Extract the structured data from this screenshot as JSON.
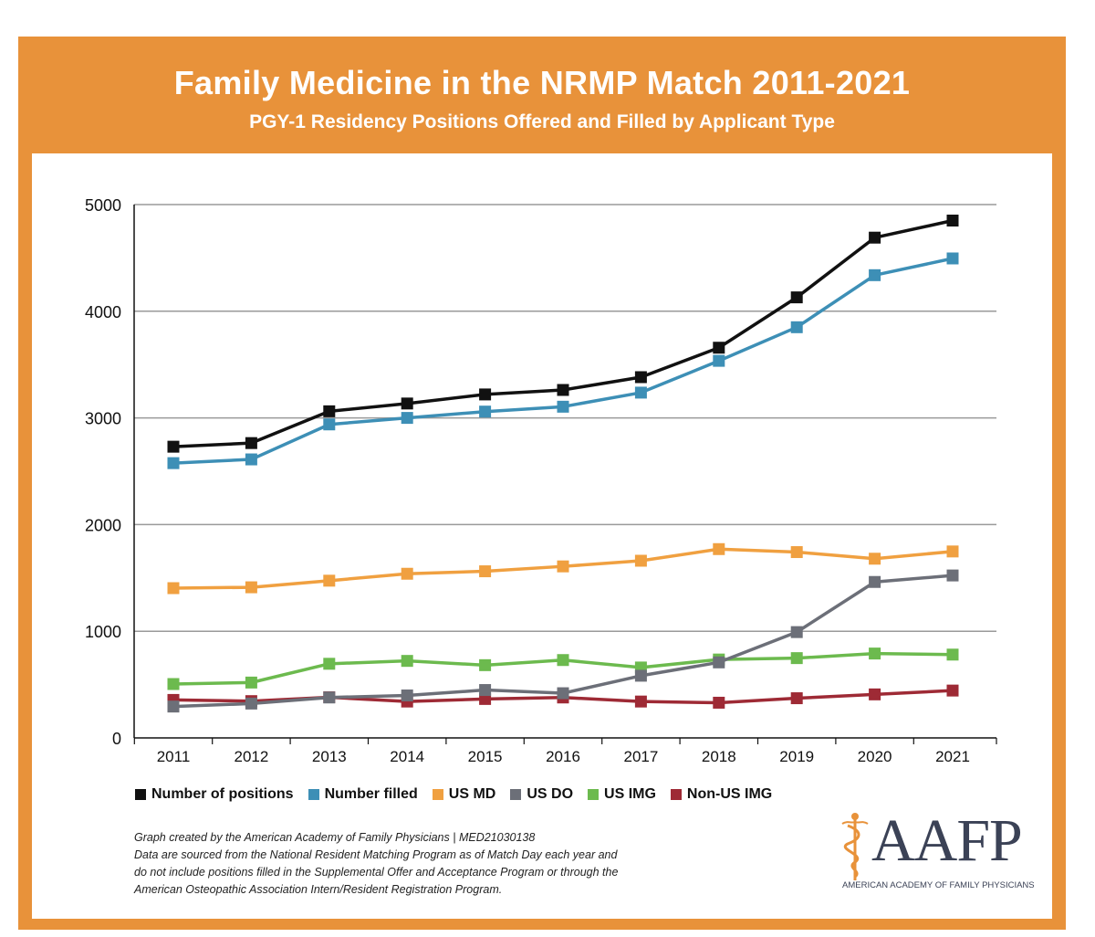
{
  "header": {
    "title": "Family Medicine in the NRMP Match 2011-2021",
    "subtitle": "PGY-1 Residency Positions Offered and Filled by Applicant Type"
  },
  "chart_data": {
    "type": "line",
    "title": "Family Medicine in the NRMP Match 2011-2021",
    "subtitle": "PGY-1 Residency Positions Offered and Filled by Applicant Type",
    "xlabel": "",
    "ylabel": "",
    "x": [
      "2011",
      "2012",
      "2013",
      "2014",
      "2015",
      "2016",
      "2017",
      "2018",
      "2019",
      "2020",
      "2021"
    ],
    "ylim": [
      0,
      5000
    ],
    "yticks": [
      "0",
      "1000",
      "2000",
      "3000",
      "4000",
      "5000"
    ],
    "grid": true,
    "legend_position": "bottom",
    "series": [
      {
        "name": "Number of positions",
        "color": "#111111",
        "values": [
          2730,
          2764,
          3062,
          3135,
          3220,
          3262,
          3382,
          3658,
          4130,
          4690,
          4850
        ]
      },
      {
        "name": "Number filled",
        "color": "#3d8fb6",
        "values": [
          2576,
          2611,
          2939,
          3000,
          3059,
          3105,
          3237,
          3535,
          3850,
          4338,
          4495
        ]
      },
      {
        "name": "US MD",
        "color": "#f0a040",
        "values": [
          1404,
          1412,
          1474,
          1539,
          1562,
          1608,
          1661,
          1770,
          1742,
          1680,
          1748
        ]
      },
      {
        "name": "US DO",
        "color": "#6c6f78",
        "values": [
          294,
          322,
          379,
          398,
          449,
          419,
          583,
          708,
          992,
          1462,
          1523
        ]
      },
      {
        "name": "US IMG",
        "color": "#6cba4e",
        "values": [
          505,
          519,
          695,
          722,
          682,
          730,
          660,
          735,
          748,
          791,
          781
        ]
      },
      {
        "name": "Non-US IMG",
        "color": "#9e2a35",
        "values": [
          356,
          345,
          381,
          341,
          365,
          379,
          341,
          330,
          372,
          408,
          444
        ]
      }
    ]
  },
  "notes": {
    "line1": "Graph created by the American Academy of Family Physicians  |  MED21030138",
    "line2": "Data are sourced from the National Resident Matching Program as of Match Day each year and",
    "line3": "do not include positions filled in the Supplemental Offer and Acceptance Program or through the",
    "line4": "American Osteopathic Association Intern/Resident Registration Program."
  },
  "logo": {
    "name": "AAFP",
    "full_name": "AMERICAN ACADEMY OF FAMILY PHYSICIANS",
    "accent_color": "#e8923a",
    "text_color": "#3b4256"
  }
}
